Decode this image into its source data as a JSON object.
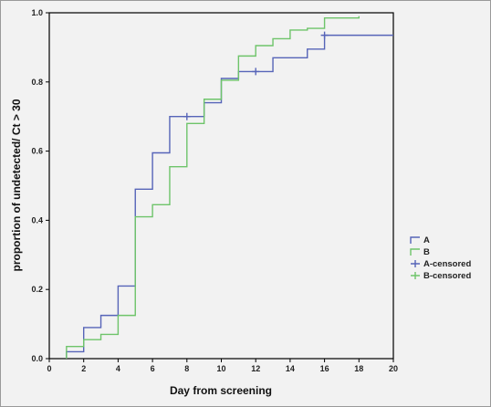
{
  "chart_data": {
    "type": "line",
    "step": true,
    "title": "",
    "xlabel": "Day from screening",
    "ylabel": "proportion of undetected/ Ct > 30",
    "xlim": [
      0,
      20
    ],
    "ylim": [
      0.0,
      1.0
    ],
    "x_ticks": [
      "0",
      "2",
      "4",
      "6",
      "8",
      "10",
      "12",
      "14",
      "16",
      "18",
      "20"
    ],
    "y_ticks": [
      "0.0",
      "0.2",
      "0.4",
      "0.6",
      "0.8",
      "1.0"
    ],
    "legend_position": "right",
    "series": [
      {
        "name": "A",
        "color": "#5664b8",
        "x": [
          1,
          2,
          3,
          4,
          5,
          6,
          7,
          9,
          10,
          11,
          13,
          15,
          16,
          20
        ],
        "y": [
          0.02,
          0.09,
          0.125,
          0.21,
          0.49,
          0.595,
          0.7,
          0.74,
          0.81,
          0.83,
          0.87,
          0.895,
          0.935,
          0.935
        ]
      },
      {
        "name": "B",
        "color": "#6ec46a",
        "x": [
          1,
          2,
          3,
          4,
          5,
          6,
          7,
          8,
          9,
          10,
          11,
          12,
          13,
          14,
          15,
          16,
          18
        ],
        "y": [
          0.035,
          0.055,
          0.07,
          0.125,
          0.41,
          0.445,
          0.555,
          0.68,
          0.75,
          0.805,
          0.875,
          0.905,
          0.925,
          0.95,
          0.955,
          0.985,
          0.99
        ]
      }
    ],
    "censored": [
      {
        "series": "A-censored",
        "color": "#5664b8",
        "points": [
          [
            8,
            0.7
          ],
          [
            12,
            0.83
          ],
          [
            16,
            0.935
          ]
        ]
      },
      {
        "series": "B-censored",
        "color": "#6ec46a",
        "points": []
      }
    ],
    "legend": [
      {
        "label": "A",
        "color": "#5664b8",
        "kind": "step"
      },
      {
        "label": "B",
        "color": "#6ec46a",
        "kind": "step"
      },
      {
        "label": "A-censored",
        "color": "#5664b8",
        "kind": "cross"
      },
      {
        "label": "B-censored",
        "color": "#6ec46a",
        "kind": "cross"
      }
    ]
  }
}
